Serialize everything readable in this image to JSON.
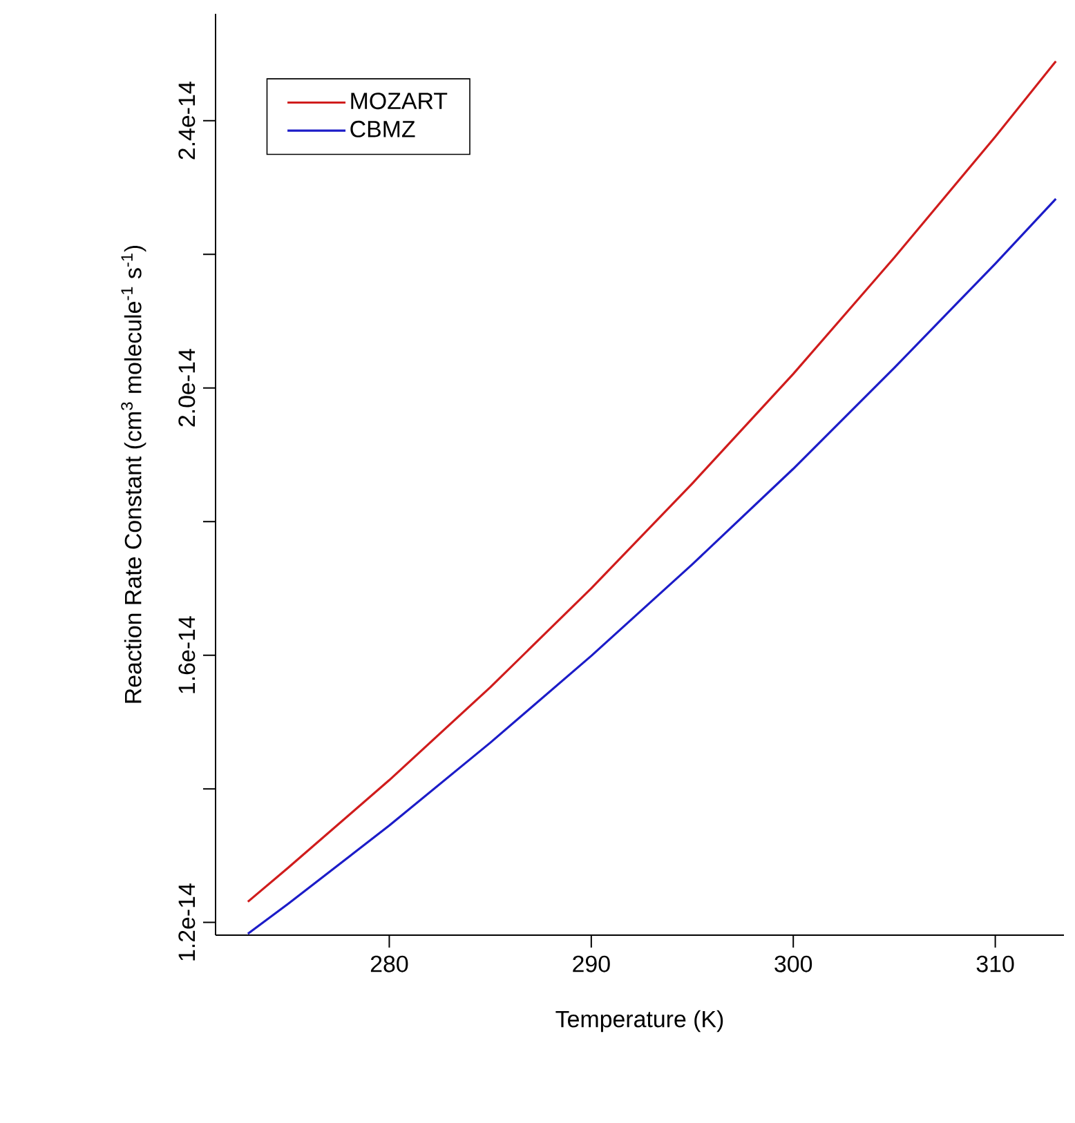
{
  "chart_data": {
    "type": "line",
    "xlabel": "Temperature (K)",
    "ylabel": "Reaction Rate Constant (cm$^{3}$ molecule$^{-1}$ s$^{-1}$)",
    "x": [
      273,
      275,
      280,
      285,
      290,
      295,
      300,
      305,
      310,
      313
    ],
    "series": [
      {
        "name": "MOZART",
        "color": "#d01c1c",
        "values": [
          1.231e-14,
          1.282e-14,
          1.413e-14,
          1.552e-14,
          1.7e-14,
          1.857e-14,
          2.021e-14,
          2.195e-14,
          2.376e-14,
          2.489e-14
        ]
      },
      {
        "name": "CBMZ",
        "color": "#1c1cc8",
        "values": [
          1.183e-14,
          1.228e-14,
          1.345e-14,
          1.469e-14,
          1.599e-14,
          1.736e-14,
          1.879e-14,
          2.03e-14,
          2.186e-14,
          2.283e-14
        ]
      }
    ],
    "xlim": [
      271.4,
      313.4
    ],
    "ylim": [
      1.181e-14,
      2.56e-14
    ],
    "xticks": [
      280,
      290,
      300,
      310
    ],
    "yticks": [
      {
        "value": 1.2e-14,
        "label": "1.2e-14"
      },
      {
        "value": 1.4e-14,
        "label": null
      },
      {
        "value": 1.6e-14,
        "label": "1.6e-14"
      },
      {
        "value": 1.8e-14,
        "label": null
      },
      {
        "value": 2e-14,
        "label": "2.0e-14"
      },
      {
        "value": 2.2e-14,
        "label": null
      },
      {
        "value": 2.4e-14,
        "label": "2.4e-14"
      }
    ],
    "legend": "top left",
    "grid": false,
    "marker": "none",
    "line_style": "solid"
  }
}
